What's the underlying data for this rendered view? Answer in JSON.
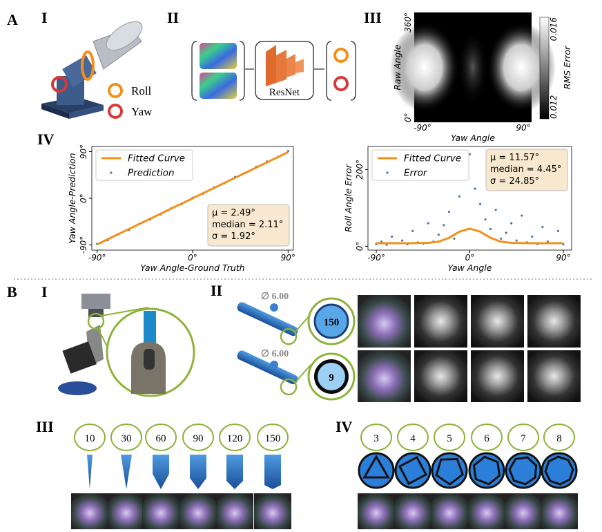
{
  "labels": {
    "A": "A",
    "A1": "I",
    "A2": "II",
    "A3": "III",
    "A4": "IV",
    "B": "B",
    "B1": "I",
    "B2": "II",
    "B3": "III",
    "B4": "IV"
  },
  "panel_A": {
    "roll": "Roll",
    "yaw": "Yaw",
    "network": "ResNet"
  },
  "heatmap": {
    "x_label": "Yaw Angle",
    "y_label": "Raw Angle",
    "xlim": [
      -90,
      90
    ],
    "ylim": [
      0,
      360
    ],
    "xticks": [
      {
        "value": -90,
        "label": "-90°"
      },
      {
        "value": 90,
        "label": "90°"
      }
    ],
    "yticks": [
      {
        "value": 0,
        "label": "0°"
      },
      {
        "value": 360,
        "label": "360°"
      }
    ],
    "colorbar_label": "RMS Error",
    "colorbar_lim": [
      0.012,
      0.016
    ],
    "colorbar_ticks": [
      0.012,
      0.016
    ]
  },
  "chart_data": [
    {
      "type": "scatter",
      "x_label": "Yaw Angle-Ground Truth",
      "y_label": "Yaw Angle-Prediction",
      "xlim": [
        -95,
        95
      ],
      "ylim": [
        -100,
        100
      ],
      "xticks": [
        {
          "value": -90,
          "label": "-90°"
        },
        {
          "value": 0,
          "label": "0°"
        },
        {
          "value": 90,
          "label": "90°"
        }
      ],
      "yticks": [
        {
          "value": -90,
          "label": "-90°"
        },
        {
          "value": 0,
          "label": "0°"
        },
        {
          "value": 90,
          "label": "90°"
        }
      ],
      "legend": "upper left",
      "annotation_position": "lower right",
      "annotation": [
        "μ = 2.49°",
        "median = 2.11°",
        "σ = 1.92°"
      ],
      "series": [
        {
          "name": "Fitted Curve",
          "color": "#f39019",
          "style": "line",
          "x": [
            -90,
            90
          ],
          "values": [
            -89,
            89
          ]
        },
        {
          "name": "Prediction",
          "color": "#4a74b4",
          "style": "points",
          "x": [
            -90,
            -80,
            -70,
            -60,
            -50,
            -40,
            -30,
            -20,
            -10,
            0,
            10,
            20,
            30,
            40,
            50,
            60,
            70,
            80,
            90
          ],
          "values": [
            -88,
            -81,
            -69,
            -61,
            -49,
            -41,
            -31,
            -19,
            -11,
            1,
            9,
            21,
            29,
            41,
            49,
            61,
            71,
            79,
            91
          ]
        }
      ]
    },
    {
      "type": "scatter",
      "x_label": "Yaw Angle",
      "y_label": "Roll Angle Error",
      "xlim": [
        -98,
        98
      ],
      "ylim": [
        -10,
        260
      ],
      "xticks": [
        {
          "value": -90,
          "label": "-90°"
        },
        {
          "value": 0,
          "label": "0°"
        },
        {
          "value": 90,
          "label": "90°"
        }
      ],
      "yticks": [
        {
          "value": 0,
          "label": "0°"
        },
        {
          "value": 200,
          "label": "200°"
        }
      ],
      "legend": "upper left",
      "annotation_position": "upper right",
      "annotation": [
        "μ = 11.57°",
        "median = 4.45°",
        "σ = 24.85°"
      ],
      "series": [
        {
          "name": "Fitted Curve",
          "color": "#f39019",
          "style": "line",
          "x": [
            -90,
            -60,
            -40,
            -30,
            -20,
            -10,
            0,
            10,
            20,
            30,
            40,
            60,
            90
          ],
          "values": [
            8,
            8,
            9,
            12,
            22,
            38,
            46,
            38,
            22,
            12,
            9,
            8,
            8
          ]
        },
        {
          "name": "Error",
          "color": "#4a74b4",
          "style": "points",
          "x": [
            -90,
            -85,
            -80,
            -75,
            -70,
            -65,
            -60,
            -55,
            -50,
            -45,
            -40,
            -35,
            -30,
            -25,
            -20,
            -15,
            -10,
            -5,
            0,
            5,
            10,
            15,
            20,
            25,
            30,
            35,
            40,
            45,
            50,
            55,
            60,
            65,
            70,
            75,
            80,
            85,
            90
          ],
          "values": [
            6,
            12,
            4,
            25,
            8,
            15,
            5,
            40,
            10,
            7,
            60,
            12,
            30,
            55,
            90,
            20,
            130,
            180,
            240,
            150,
            110,
            70,
            45,
            95,
            20,
            35,
            60,
            15,
            80,
            10,
            25,
            6,
            50,
            12,
            8,
            40,
            5
          ]
        }
      ]
    }
  ],
  "panel_B": {
    "diameter_top": "∅ 6.00",
    "diameter_bottom": "∅ 6.00",
    "tip_top": "150",
    "tip_bottom": "9",
    "angles": [
      "10",
      "30",
      "60",
      "90",
      "120",
      "150"
    ],
    "sides": [
      "3",
      "4",
      "5",
      "6",
      "7",
      "8"
    ]
  }
}
